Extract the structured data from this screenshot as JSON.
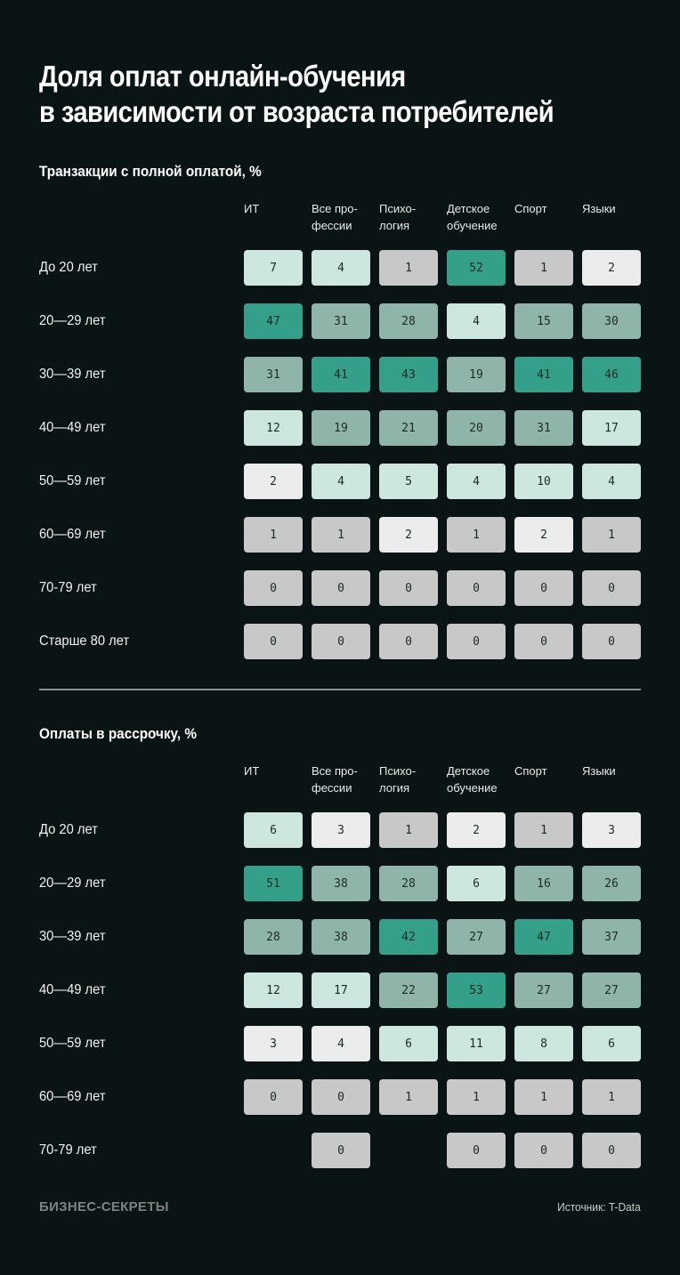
{
  "title_line1": "Доля оплат онлайн-обучения",
  "title_line2": "в зависимости от возраста потребителей",
  "colors": {
    "background": "#0b1414",
    "dark_green": "#35a08a",
    "mid_green": "#8fb5aa",
    "light_mint": "#cde6de",
    "near_white": "#ececec",
    "gray": "#c8c8c8"
  },
  "columns": [
    "ИТ",
    "Все про-\nфессии",
    "Психо-\nлогия",
    "Детское\nобучение",
    "Спорт",
    "Языки"
  ],
  "footer": {
    "brand": "БИЗНЕС-СЕКРЕТЫ",
    "source": "Источник: T-Data"
  },
  "chart_data": [
    {
      "type": "heatmap",
      "title": "Транзакции с полной оплатой, %",
      "columns": [
        "ИТ",
        "Все профессии",
        "Психология",
        "Детское обучение",
        "Спорт",
        "Языки"
      ],
      "rows": [
        {
          "label": "До 20 лет",
          "values": [
            7,
            4,
            1,
            52,
            1,
            2
          ]
        },
        {
          "label": "20—29 лет",
          "values": [
            47,
            31,
            28,
            4,
            15,
            30
          ]
        },
        {
          "label": "30—39 лет",
          "values": [
            31,
            41,
            43,
            19,
            41,
            46
          ]
        },
        {
          "label": "40—49 лет",
          "values": [
            12,
            19,
            21,
            20,
            31,
            17
          ]
        },
        {
          "label": "50—59 лет",
          "values": [
            2,
            4,
            5,
            4,
            10,
            4
          ]
        },
        {
          "label": "60—69 лет",
          "values": [
            1,
            1,
            2,
            1,
            2,
            1
          ]
        },
        {
          "label": "70-79 лет",
          "values": [
            0,
            0,
            0,
            0,
            0,
            0
          ]
        },
        {
          "label": "Старше 80 лет",
          "values": [
            0,
            0,
            0,
            0,
            0,
            0
          ]
        }
      ]
    },
    {
      "type": "heatmap",
      "title": "Оплаты в рассрочку, %",
      "columns": [
        "ИТ",
        "Все профессии",
        "Психология",
        "Детское обучение",
        "Спорт",
        "Языки"
      ],
      "rows": [
        {
          "label": "До 20 лет",
          "values": [
            6,
            3,
            1,
            2,
            1,
            3
          ]
        },
        {
          "label": "20—29 лет",
          "values": [
            51,
            38,
            28,
            6,
            16,
            26
          ]
        },
        {
          "label": "30—39 лет",
          "values": [
            28,
            38,
            42,
            27,
            47,
            37
          ]
        },
        {
          "label": "40—49 лет",
          "values": [
            12,
            17,
            22,
            53,
            27,
            27
          ]
        },
        {
          "label": "50—59 лет",
          "values": [
            3,
            4,
            6,
            11,
            8,
            6
          ]
        },
        {
          "label": "60—69 лет",
          "values": [
            0,
            0,
            1,
            1,
            1,
            1
          ]
        },
        {
          "label": "70-79 лет",
          "values": [
            null,
            0,
            null,
            0,
            0,
            0
          ]
        }
      ]
    }
  ],
  "cell_colors": [
    [
      [
        "light_mint",
        "light_mint",
        "gray",
        "dark_green",
        "gray",
        "near_white"
      ],
      [
        "dark_green",
        "mid_green",
        "mid_green",
        "light_mint",
        "mid_green",
        "mid_green"
      ],
      [
        "mid_green",
        "dark_green",
        "dark_green",
        "mid_green",
        "dark_green",
        "dark_green"
      ],
      [
        "light_mint",
        "mid_green",
        "mid_green",
        "mid_green",
        "mid_green",
        "light_mint"
      ],
      [
        "near_white",
        "light_mint",
        "light_mint",
        "light_mint",
        "light_mint",
        "light_mint"
      ],
      [
        "gray",
        "gray",
        "near_white",
        "gray",
        "near_white",
        "gray"
      ],
      [
        "gray",
        "gray",
        "gray",
        "gray",
        "gray",
        "gray"
      ],
      [
        "gray",
        "gray",
        "gray",
        "gray",
        "gray",
        "gray"
      ]
    ],
    [
      [
        "light_mint",
        "near_white",
        "gray",
        "near_white",
        "gray",
        "near_white"
      ],
      [
        "dark_green",
        "mid_green",
        "mid_green",
        "light_mint",
        "mid_green",
        "mid_green"
      ],
      [
        "mid_green",
        "mid_green",
        "dark_green",
        "mid_green",
        "dark_green",
        "mid_green"
      ],
      [
        "light_mint",
        "light_mint",
        "mid_green",
        "dark_green",
        "mid_green",
        "mid_green"
      ],
      [
        "near_white",
        "near_white",
        "light_mint",
        "light_mint",
        "light_mint",
        "light_mint"
      ],
      [
        "gray",
        "gray",
        "gray",
        "gray",
        "gray",
        "gray"
      ],
      [
        null,
        "gray",
        null,
        "gray",
        "gray",
        "gray"
      ]
    ]
  ]
}
